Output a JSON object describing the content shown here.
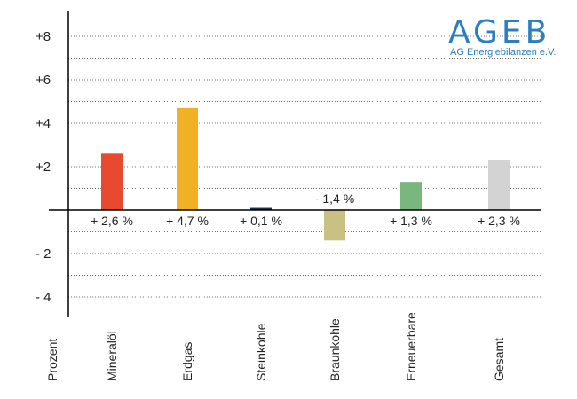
{
  "chart_data": {
    "type": "bar",
    "categories": [
      "Mineralöl",
      "Erdgas",
      "Steinkohle",
      "Braunkohle",
      "Erneuerbare",
      "Gesamt"
    ],
    "values": [
      2.6,
      4.7,
      0.1,
      -1.4,
      1.3,
      2.3
    ],
    "data_labels": [
      "+ 2,6 %",
      "+ 4,7 %",
      "+ 0,1 %",
      "- 1,4 %",
      "+ 1,3 %",
      "+ 2,3 %"
    ],
    "colors": [
      "#e84a2f",
      "#f2b124",
      "#1c2e3d",
      "#c9c083",
      "#7ab77d",
      "#d3d3d3"
    ],
    "ylim": [
      -5,
      9
    ],
    "yticks": [
      8,
      6,
      4,
      2,
      -2,
      -4
    ],
    "ytick_labels": [
      "+8",
      "+6",
      "+4",
      "+2",
      "- 2",
      "- 4"
    ],
    "ylabel": "Prozent",
    "grid": true
  },
  "logo": {
    "name": "AGEB",
    "subtitle": "AG Energiebilanzen e.V."
  }
}
